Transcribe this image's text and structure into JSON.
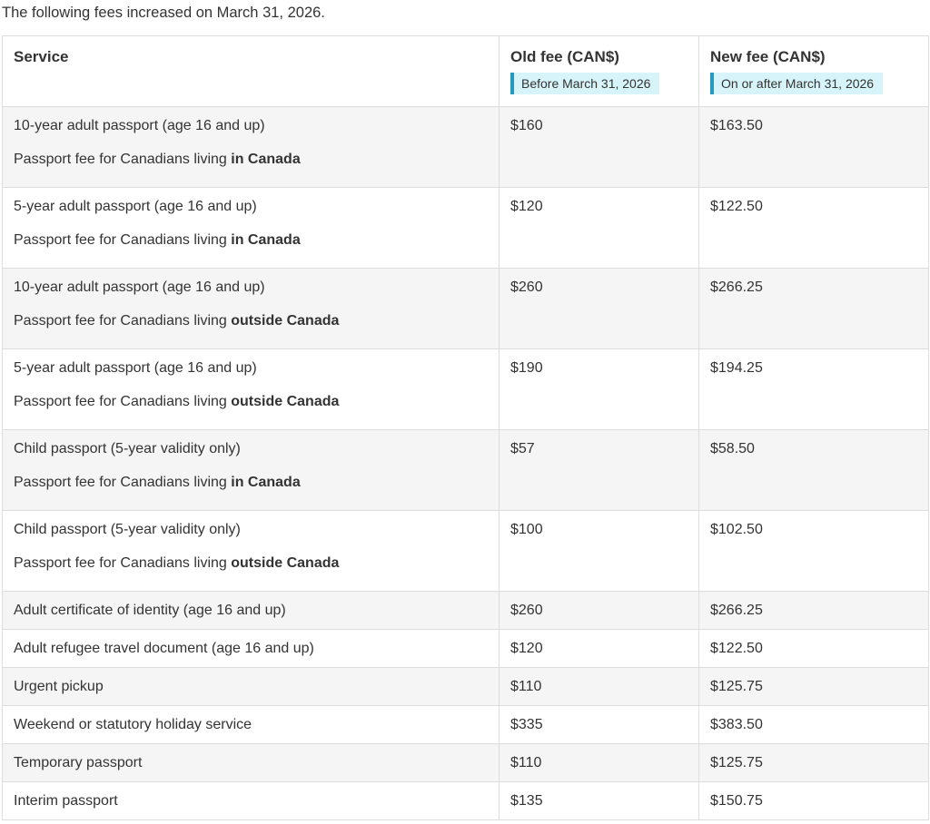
{
  "intro": "The following fees increased on March 31, 2026.",
  "colors": {
    "highlight_background": "#d6f4f9",
    "highlight_bar": "#269abc",
    "row_stripe": "#f5f5f5",
    "table_border": "#dddddd",
    "text": "#333333"
  },
  "table": {
    "columns": {
      "service": "Service",
      "old_fee": "Old fee (CAN$)",
      "old_fee_note": "Before March 31, 2026",
      "new_fee": "New fee (CAN$)",
      "new_fee_note": "On or after March 31, 2026"
    },
    "rows": [
      {
        "service": "10-year adult passport (age 16 and up)",
        "detail_prefix": "Passport fee for Canadians living ",
        "detail_bold": "in Canada",
        "old": "$160",
        "new": "$163.50"
      },
      {
        "service": "5-year adult passport (age 16 and up)",
        "detail_prefix": "Passport fee for Canadians living ",
        "detail_bold": "in Canada",
        "old": "$120",
        "new": "$122.50"
      },
      {
        "service": "10-year adult passport (age 16 and up)",
        "detail_prefix": "Passport fee for Canadians living ",
        "detail_bold": "outside Canada",
        "old": "$260",
        "new": "$266.25"
      },
      {
        "service": "5-year adult passport (age 16 and up)",
        "detail_prefix": "Passport fee for Canadians living ",
        "detail_bold": "outside Canada",
        "old": "$190",
        "new": "$194.25"
      },
      {
        "service": "Child passport (5-year validity only)",
        "detail_prefix": "Passport fee for Canadians living ",
        "detail_bold": "in Canada",
        "old": "$57",
        "new": "$58.50"
      },
      {
        "service": "Child passport (5-year validity only)",
        "detail_prefix": "Passport fee for Canadians living ",
        "detail_bold": "outside Canada",
        "old": "$100",
        "new": "$102.50"
      },
      {
        "service": "Adult certificate of identity (age 16 and up)",
        "detail_prefix": "",
        "detail_bold": "",
        "old": "$260",
        "new": "$266.25"
      },
      {
        "service": "Adult refugee travel document (age 16 and up)",
        "detail_prefix": "",
        "detail_bold": "",
        "old": "$120",
        "new": "$122.50"
      },
      {
        "service": "Urgent pickup",
        "detail_prefix": "",
        "detail_bold": "",
        "old": "$110",
        "new": "$125.75"
      },
      {
        "service": "Weekend or statutory holiday service",
        "detail_prefix": "",
        "detail_bold": "",
        "old": "$335",
        "new": "$383.50"
      },
      {
        "service": "Temporary passport",
        "detail_prefix": "",
        "detail_bold": "",
        "old": "$110",
        "new": "$125.75"
      },
      {
        "service": "Interim passport",
        "detail_prefix": "",
        "detail_bold": "",
        "old": "$135",
        "new": "$150.75"
      }
    ]
  }
}
